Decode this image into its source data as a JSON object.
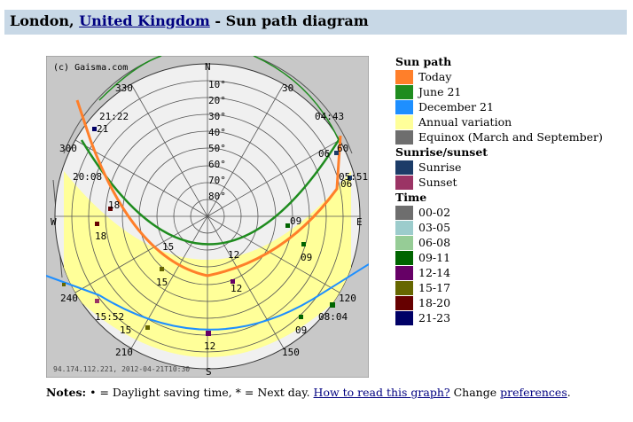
{
  "header": {
    "city": "London",
    "separator": ", ",
    "country_link": "United Kingdom",
    "suffix": " - Sun path diagram"
  },
  "diagram": {
    "copyright": "(c) Gaisma.com",
    "footer_stamp": "94.174.112.221, 2012-04-21T10:30",
    "directions": {
      "n": "N",
      "e": "E",
      "s": "S",
      "w": "W"
    },
    "elevation_labels": [
      "10°",
      "20°",
      "30°",
      "40°",
      "50°",
      "60°",
      "70°",
      "80°"
    ],
    "azimuth_labels": [
      "330",
      "30",
      "60",
      "300",
      "120",
      "240",
      "210",
      "150"
    ],
    "event_times": {
      "june_sunrise": "04:43",
      "june_sunset": "21:22",
      "today_sunrise": "05:51",
      "today_sunset": "20:08",
      "december_sunrise": "08:04",
      "december_sunset": "15:52"
    },
    "hour_labels": {
      "june": [
        "21",
        "06",
        "09",
        "12",
        "15",
        "18"
      ],
      "today": [
        "06",
        "09",
        "12",
        "15",
        "18"
      ],
      "december": [
        "09",
        "12",
        "15"
      ]
    },
    "colors": {
      "background": "#c8c8c8",
      "horizon_disc": "#f0f0f0",
      "annual_band": "#ffff99",
      "today": "#ff7f2a",
      "june": "#228b22",
      "december": "#1e90ff"
    }
  },
  "legend": {
    "sun_path_heading": "Sun path",
    "sun_path_items": [
      {
        "label": "Today",
        "color": "#ff7f2a"
      },
      {
        "label": "June 21",
        "color": "#1f8c1f"
      },
      {
        "label": "December 21",
        "color": "#1e8fff"
      },
      {
        "label": "Annual variation",
        "color": "#ffff99"
      },
      {
        "label": "Equinox (March and September)",
        "color": "#6e6e6e"
      }
    ],
    "sunrise_heading": "Sunrise/sunset",
    "sunrise_items": [
      {
        "label": "Sunrise",
        "color": "#1c3c68"
      },
      {
        "label": "Sunset",
        "color": "#9b3465"
      }
    ],
    "time_heading": "Time",
    "time_items": [
      {
        "label": "00-02",
        "color": "#6e6e6e"
      },
      {
        "label": "03-05",
        "color": "#9ccccc"
      },
      {
        "label": "06-08",
        "color": "#96cc96"
      },
      {
        "label": "09-11",
        "color": "#006400"
      },
      {
        "label": "12-14",
        "color": "#660066"
      },
      {
        "label": "15-17",
        "color": "#666600"
      },
      {
        "label": "18-20",
        "color": "#660000"
      },
      {
        "label": "21-23",
        "color": "#000066"
      }
    ]
  },
  "notes": {
    "label": "Notes:",
    "bullet": "•",
    "text1": " = Daylight saving time, * = Next day. ",
    "link1": "How to read this graph?",
    "text2": " Change ",
    "link2": "preferences",
    "end": "."
  }
}
